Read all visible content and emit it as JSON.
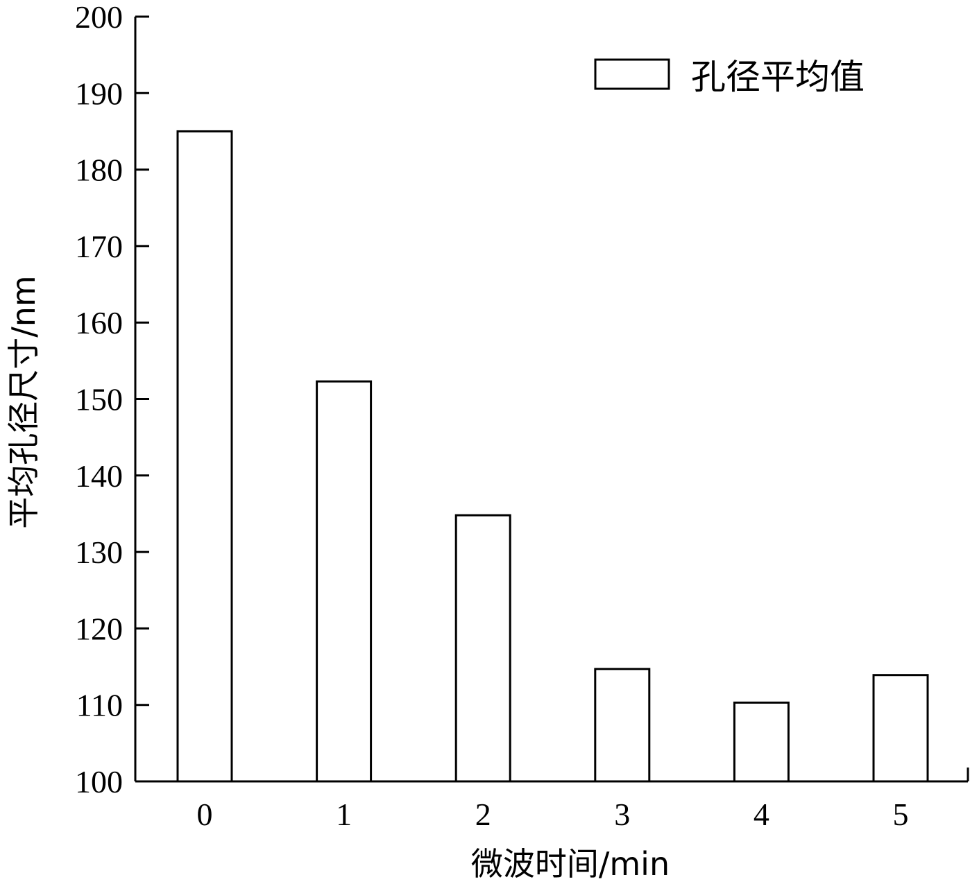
{
  "chart_data": {
    "type": "bar",
    "categories": [
      "0",
      "1",
      "2",
      "3",
      "4",
      "5"
    ],
    "series": [
      {
        "name": "孔径平均值",
        "values": [
          185,
          152.3,
          134.8,
          114.7,
          110.3,
          113.9
        ]
      }
    ],
    "xlabel": "微波时间/min",
    "ylabel": "平均孔径尺寸/nm",
    "ylim": [
      100,
      200
    ],
    "yticks": [
      "100",
      "110",
      "120",
      "130",
      "140",
      "150",
      "160",
      "170",
      "180",
      "190",
      "200"
    ],
    "grid": false,
    "legend_position": "top-right",
    "colors": {
      "bar_fill": "#ffffff",
      "bar_stroke": "#000000"
    }
  }
}
